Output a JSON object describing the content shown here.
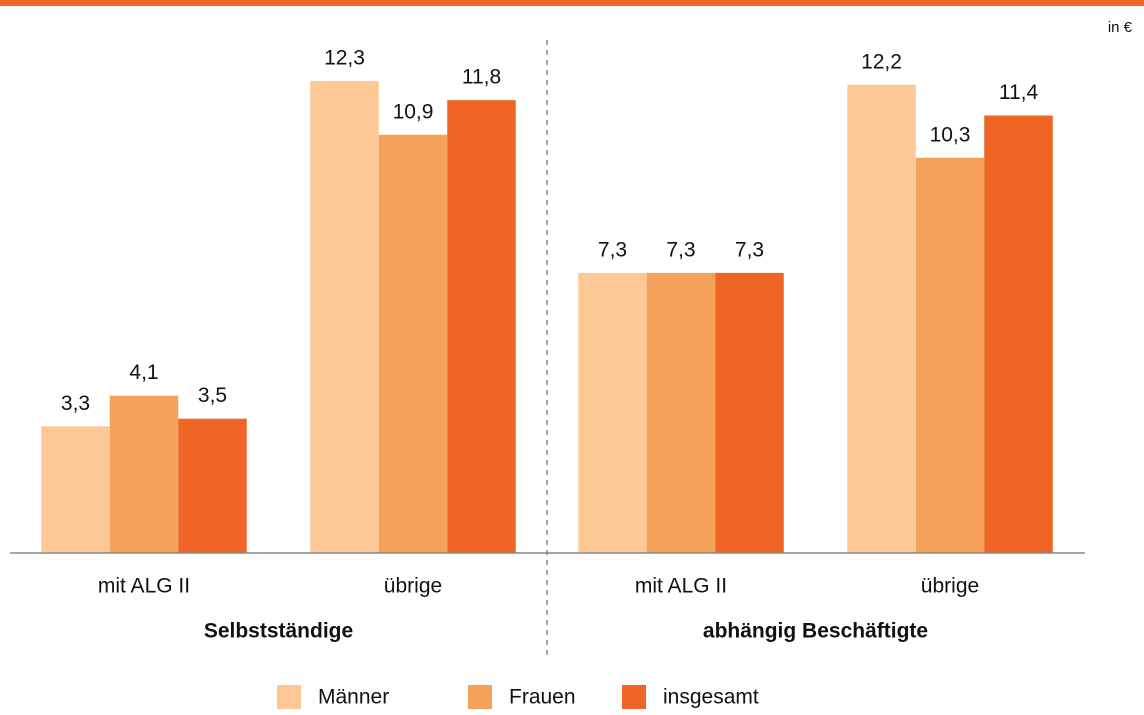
{
  "chart_data": {
    "type": "bar",
    "unit": "in €",
    "categories": [
      "mit ALG II",
      "übrige",
      "mit ALG II",
      "übrige"
    ],
    "group_labels": [
      "Selbstständige",
      "abhängig Beschäftigte"
    ],
    "series": [
      {
        "name": "Männer",
        "color": "#fdc896",
        "values": [
          3.3,
          12.3,
          7.3,
          12.2
        ],
        "value_labels": [
          "3,3",
          "12,3",
          "7,3",
          "12,2"
        ]
      },
      {
        "name": "Frauen",
        "color": "#f4a259",
        "values": [
          4.1,
          10.9,
          7.3,
          10.3
        ],
        "value_labels": [
          "4,1",
          "10,9",
          "7,3",
          "10,3"
        ]
      },
      {
        "name": "insgesamt",
        "color": "#ee6526",
        "values": [
          3.5,
          11.8,
          7.3,
          11.4
        ],
        "value_labels": [
          "3,5",
          "11,8",
          "7,3",
          "11,4"
        ]
      }
    ]
  }
}
